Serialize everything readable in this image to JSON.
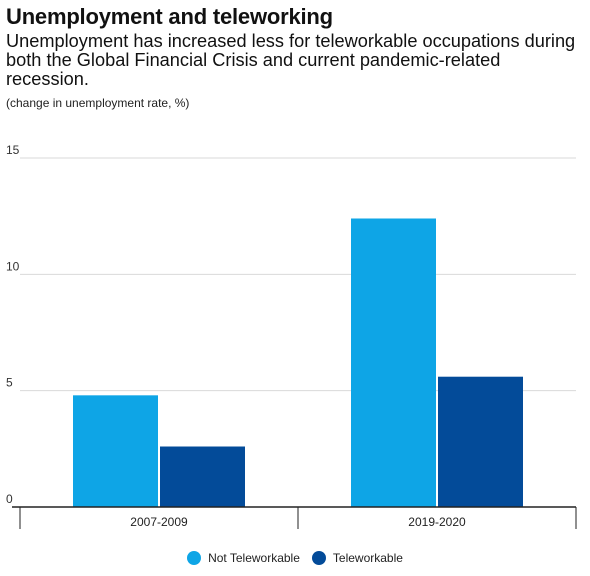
{
  "title": "Unemployment and teleworking",
  "subtitle": "Unemployment has increased less for teleworkable occupations during both the Global Financial Crisis and current pandemic-related recession.",
  "unit_note": "(change in unemployment rate, %)",
  "legend": {
    "items": [
      {
        "label": "Not Teleworkable",
        "color": "#0ea5e6"
      },
      {
        "label": "Teleworkable",
        "color": "#034b99"
      }
    ]
  },
  "chart_data": {
    "type": "bar",
    "categories": [
      "2007-2009",
      "2019-2020"
    ],
    "series": [
      {
        "name": "Not Teleworkable",
        "values": [
          4.8,
          12.4
        ],
        "color": "#0ea5e6"
      },
      {
        "name": "Teleworkable",
        "values": [
          2.6,
          5.6
        ],
        "color": "#034b99"
      }
    ],
    "ylim": [
      0,
      15
    ],
    "yticks": [
      0,
      5,
      10,
      15
    ],
    "grid": true,
    "legend_position": "bottom-center",
    "xlabel": "",
    "ylabel": ""
  }
}
